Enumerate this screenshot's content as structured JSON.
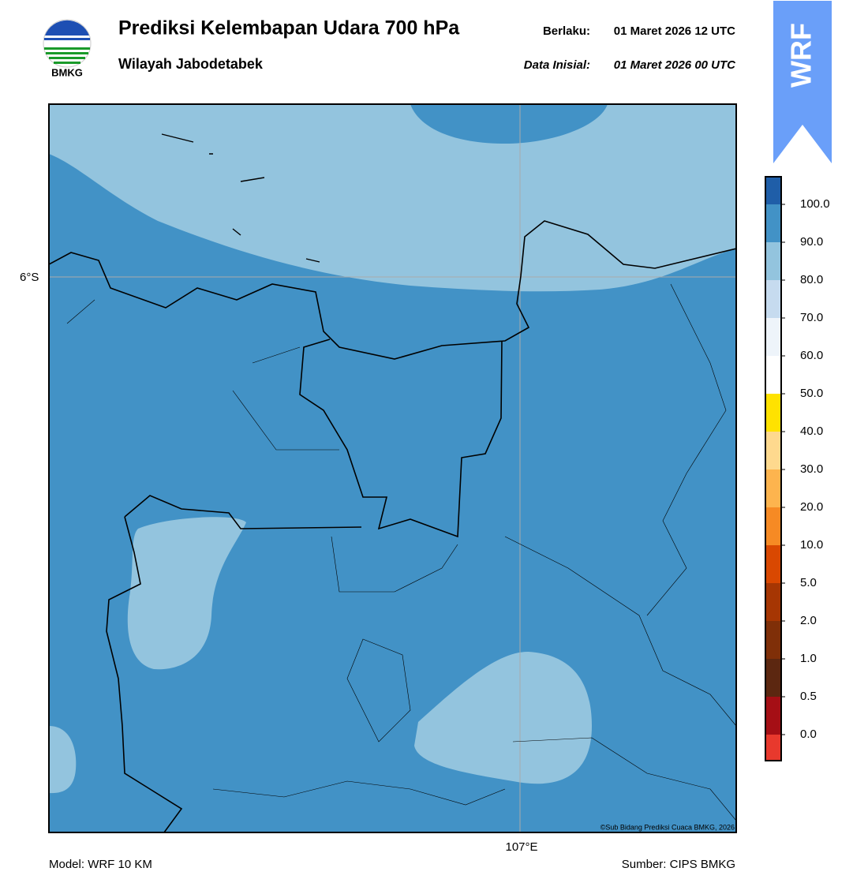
{
  "header": {
    "title": "Prediksi Kelembapan Udara 700 hPa",
    "subtitle": "Wilayah Jabodetabek",
    "valid_label": "Berlaku:",
    "valid_time": "01 Maret 2026 12 UTC",
    "init_label": "Data Inisial:",
    "init_time": "01 Maret 2026 00 UTC",
    "logo_text": "BMKG",
    "badge": "WRF"
  },
  "map": {
    "lat_label": "6°S",
    "lon_label": "107°E",
    "credit": "©Sub Bidang Prediksi Cuaca BMKG, 2026"
  },
  "colorbar": {
    "ticks": [
      {
        "value": 0,
        "label": "0.0"
      },
      {
        "value": 0.5,
        "label": "0.5"
      },
      {
        "value": 1,
        "label": "1.0"
      },
      {
        "value": 2,
        "label": "2.0"
      },
      {
        "value": 5,
        "label": "5.0"
      },
      {
        "value": 10,
        "label": "10.0"
      },
      {
        "value": 20,
        "label": "20.0"
      },
      {
        "value": 30,
        "label": "30.0"
      },
      {
        "value": 40,
        "label": "40.0"
      },
      {
        "value": 50,
        "label": "50.0"
      },
      {
        "value": 60,
        "label": "60.0"
      },
      {
        "value": 70,
        "label": "70.0"
      },
      {
        "value": 80,
        "label": "80.0"
      },
      {
        "value": 90,
        "label": "90.0"
      },
      {
        "value": 100,
        "label": "100.0"
      }
    ],
    "colors": [
      "#e8392d",
      "#a50f15",
      "#5c2710",
      "#7f2f08",
      "#a63603",
      "#d94801",
      "#f68a24",
      "#fdb44e",
      "#fed98e",
      "#ffe200",
      "#ffffff",
      "#eef4fa",
      "#c6dbef",
      "#93c4de",
      "#4292c6",
      "#1f5ea8",
      "#08306b",
      "#2a0a4a"
    ]
  },
  "footer": {
    "model": "Model: WRF 10 KM",
    "source": "Sumber: CIPS BMKG"
  }
}
